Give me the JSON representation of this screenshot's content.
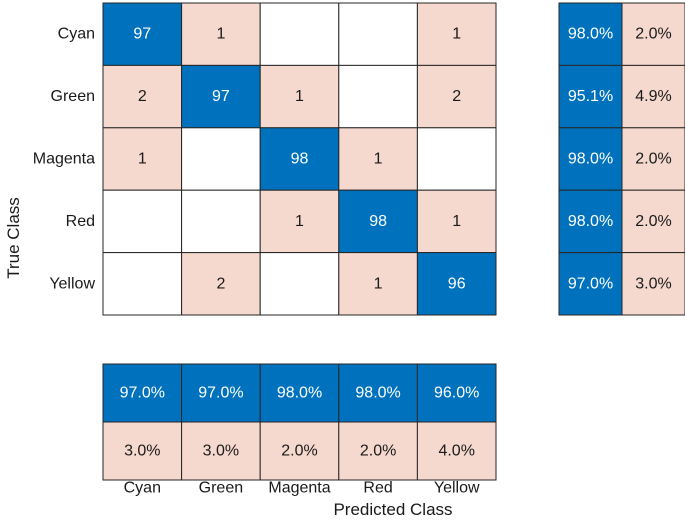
{
  "chart_data": {
    "type": "heatmap",
    "title": "",
    "classes": [
      "Cyan",
      "Green",
      "Magenta",
      "Red",
      "Yellow"
    ],
    "ylabel": "True Class",
    "xlabel": "Predicted Class",
    "matrix": [
      [
        97,
        1,
        null,
        null,
        1
      ],
      [
        2,
        97,
        1,
        null,
        2
      ],
      [
        1,
        null,
        98,
        1,
        null
      ],
      [
        null,
        null,
        1,
        98,
        1
      ],
      [
        null,
        2,
        null,
        1,
        96
      ]
    ],
    "row_summary": {
      "correct": [
        "98.0%",
        "95.1%",
        "98.0%",
        "98.0%",
        "97.0%"
      ],
      "incorrect": [
        "2.0%",
        "4.9%",
        "2.0%",
        "2.0%",
        "3.0%"
      ]
    },
    "column_summary": {
      "correct": [
        "97.0%",
        "97.0%",
        "98.0%",
        "98.0%",
        "96.0%"
      ],
      "incorrect": [
        "3.0%",
        "3.0%",
        "2.0%",
        "2.0%",
        "4.0%"
      ]
    },
    "colors": {
      "correct": "#0072bd",
      "incorrect": "#f5d8ce",
      "empty": "#ffffff",
      "grid": "#262626",
      "correct_text": "#ffffff",
      "incorrect_text": "#1a1a1a"
    }
  }
}
